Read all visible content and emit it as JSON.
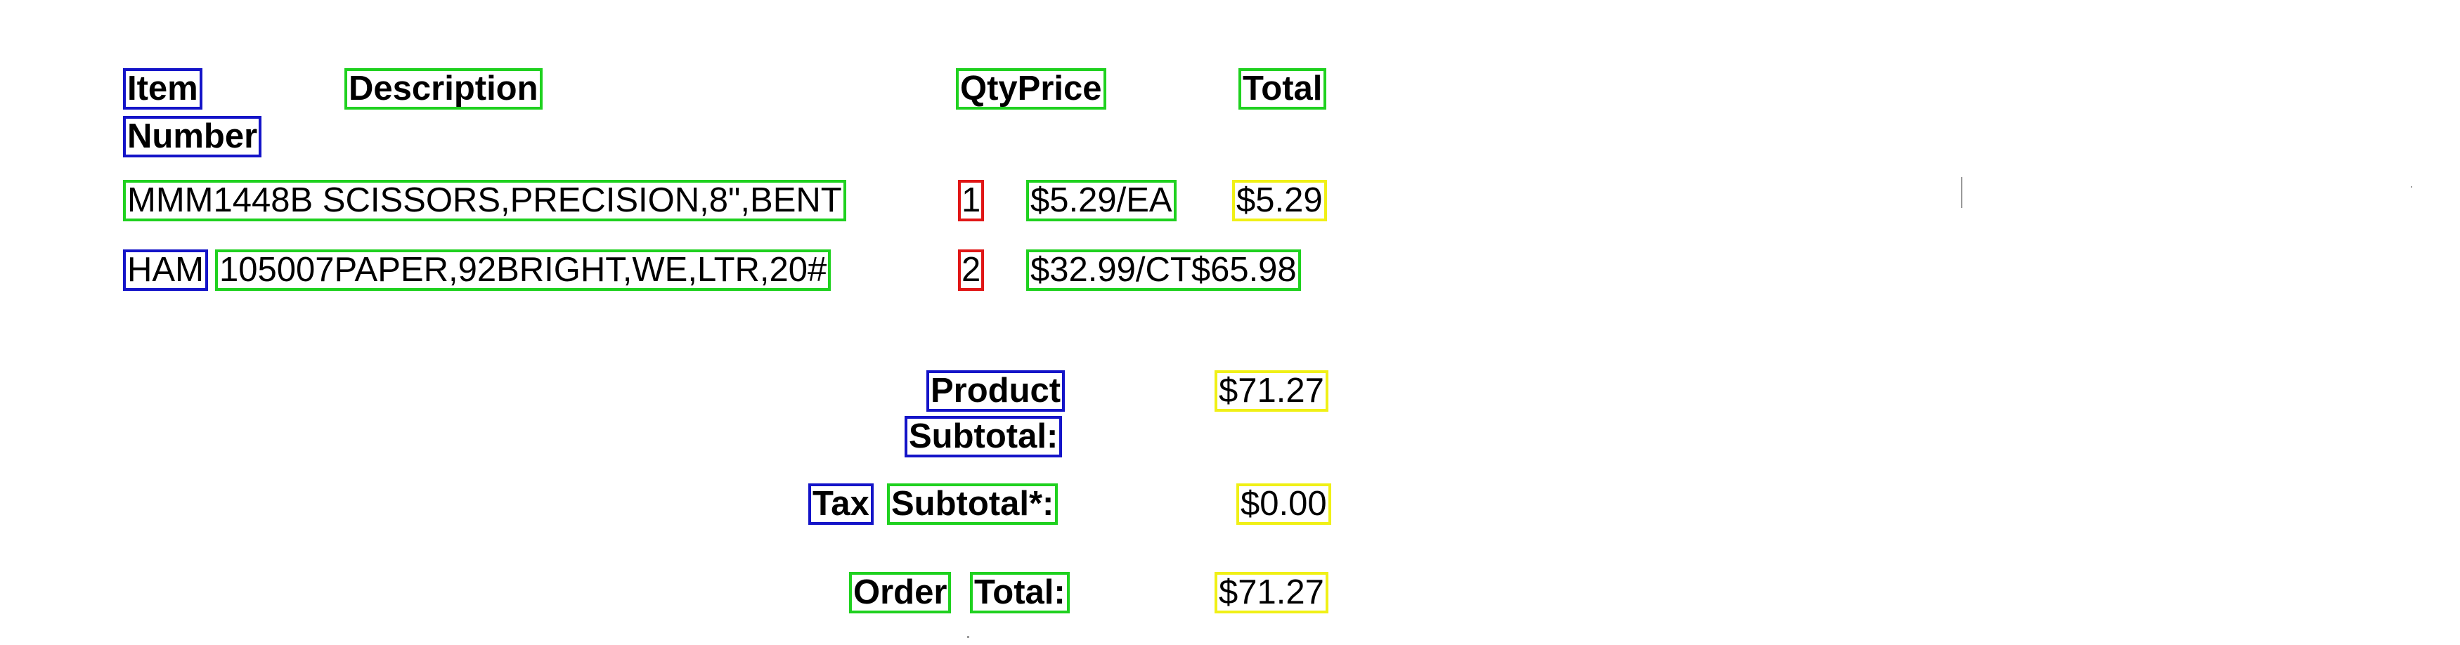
{
  "header": {
    "item": "Item",
    "number": "Number",
    "description": "Description",
    "qty_price": "QtyPrice",
    "total": "Total"
  },
  "rows": [
    {
      "item": "MMM1448B",
      "description": "SCISSORS,PRECISION,8\",BENT",
      "qty": "1",
      "price": "$5.29/EA",
      "total": "$5.29"
    },
    {
      "item": "HAM",
      "item_tail": "105007",
      "description": "PAPER,92BRIGHT,WE,LTR,20#",
      "qty": "2",
      "price": "$32.99/CT",
      "total": "$65.98"
    }
  ],
  "summary": {
    "product_label_1": "Product",
    "product_label_2": "Subtotal:",
    "product_value": "$71.27",
    "tax_label_1": "Tax",
    "tax_label_2": "Subtotal*:",
    "tax_value": "$0.00",
    "order_label_1": "Order",
    "order_label_2": "Total:",
    "order_value": "$71.27"
  },
  "box_colors": {
    "green": "#1fd11f",
    "blue": "#1414c8",
    "red": "#e01616",
    "yellow": "#f0f016"
  }
}
